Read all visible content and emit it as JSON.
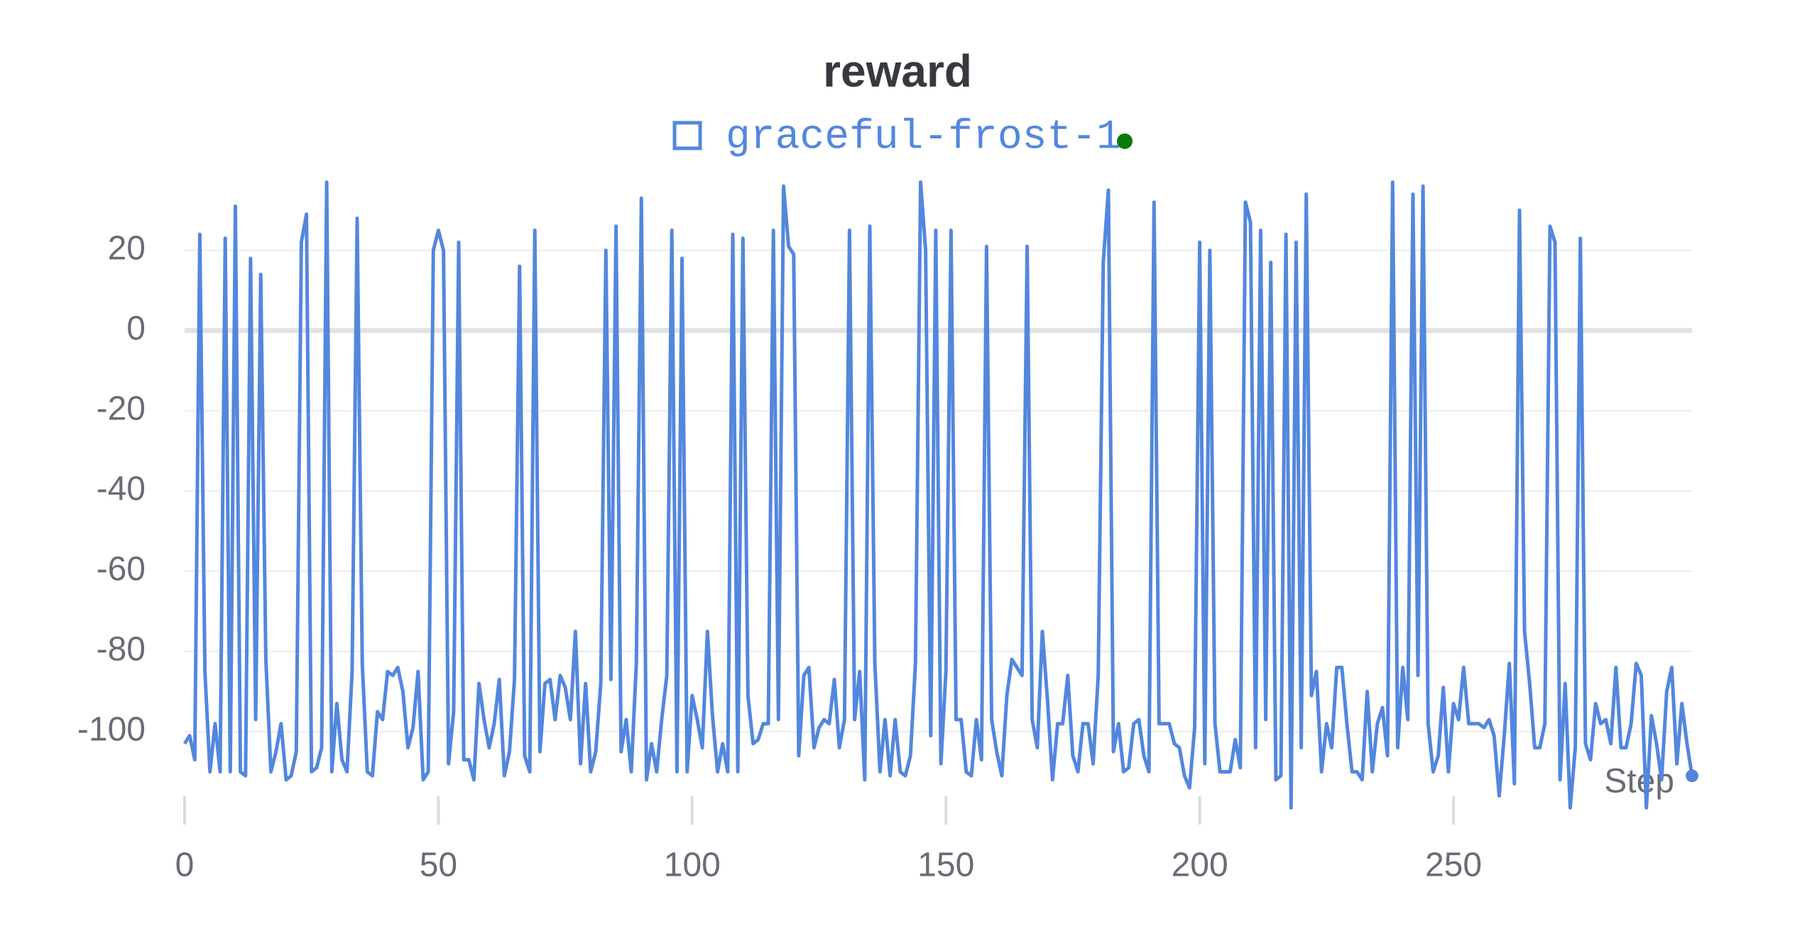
{
  "chart_data": {
    "type": "line",
    "title": "reward",
    "xlabel": "Step",
    "x": [
      0,
      1,
      2,
      3,
      4,
      5,
      6,
      7,
      8,
      9,
      10,
      11,
      12,
      13,
      14,
      15,
      16,
      17,
      18,
      19,
      20,
      21,
      22,
      23,
      24,
      25,
      26,
      27,
      28,
      29,
      30,
      31,
      32,
      33,
      34,
      35,
      36,
      37,
      38,
      39,
      40,
      41,
      42,
      43,
      44,
      45,
      46,
      47,
      48,
      49,
      50,
      51,
      52,
      53,
      54,
      55,
      56,
      57,
      58,
      59,
      60,
      61,
      62,
      63,
      64,
      65,
      66,
      67,
      68,
      69,
      70,
      71,
      72,
      73,
      74,
      75,
      76,
      77,
      78,
      79,
      80,
      81,
      82,
      83,
      84,
      85,
      86,
      87,
      88,
      89,
      90,
      91,
      92,
      93,
      94,
      95,
      96,
      97,
      98,
      99,
      100,
      101,
      102,
      103,
      104,
      105,
      106,
      107,
      108,
      109,
      110,
      111,
      112,
      113,
      114,
      115,
      116,
      117,
      118,
      119,
      120,
      121,
      122,
      123,
      124,
      125,
      126,
      127,
      128,
      129,
      130,
      131,
      132,
      133,
      134,
      135,
      136,
      137,
      138,
      139,
      140,
      141,
      142,
      143,
      144,
      145,
      146,
      147,
      148,
      149,
      150,
      151,
      152,
      153,
      154,
      155,
      156,
      157,
      158,
      159,
      160,
      161,
      162,
      163,
      164,
      165,
      166,
      167,
      168,
      169,
      170,
      171,
      172,
      173,
      174,
      175,
      176,
      177,
      178,
      179,
      180,
      181,
      182,
      183,
      184,
      185,
      186,
      187,
      188,
      189,
      190,
      191,
      192,
      193,
      194,
      195,
      196,
      197,
      198,
      199,
      200,
      201,
      202,
      203,
      204,
      205,
      206,
      207,
      208,
      209,
      210,
      211,
      212,
      213,
      214,
      215,
      216,
      217,
      218,
      219,
      220,
      221,
      222,
      223,
      224,
      225,
      226,
      227,
      228,
      229,
      230,
      231,
      232,
      233,
      234,
      235,
      236,
      237,
      238,
      239,
      240,
      241,
      242,
      243,
      244,
      245,
      246,
      247,
      248,
      249,
      250,
      251,
      252,
      253,
      254,
      255,
      256,
      257,
      258,
      259,
      260,
      261,
      262,
      263,
      264,
      265,
      266,
      267,
      268,
      269,
      270,
      271,
      272,
      273,
      274,
      275,
      276,
      277,
      278,
      279,
      280,
      281,
      282,
      283,
      284,
      285,
      286,
      287,
      288,
      289,
      290,
      291,
      292,
      293,
      294,
      295,
      296,
      297
    ],
    "series": [
      {
        "name": "graceful-frost-1",
        "color": "#5387dd",
        "values": [
          -103,
          -101,
          -107,
          24,
          -85,
          -110,
          -98,
          -110,
          23,
          -110,
          31,
          -110,
          -111,
          18,
          -97,
          14,
          -82,
          -110,
          -105,
          -98,
          -112,
          -111,
          -105,
          22,
          29,
          -110,
          -109,
          -104,
          37,
          -110,
          -93,
          -107,
          -110,
          -85,
          28,
          -83,
          -110,
          -111,
          -95,
          -97,
          -85,
          -86,
          -84,
          -90,
          -104,
          -99,
          -85,
          -112,
          -110,
          20,
          25,
          20,
          -108,
          -95,
          22,
          -107,
          -107,
          -112,
          -88,
          -97,
          -104,
          -98,
          -87,
          -111,
          -105,
          -87,
          16,
          -106,
          -110,
          25,
          -105,
          -88,
          -87,
          -97,
          -86,
          -89,
          -97,
          -75,
          -108,
          -88,
          -110,
          -105,
          -88,
          20,
          -87,
          26,
          -105,
          -97,
          -110,
          -83,
          33,
          -112,
          -103,
          -110,
          -97,
          -86,
          25,
          -110,
          18,
          -110,
          -91,
          -97,
          -104,
          -75,
          -96,
          -110,
          -103,
          -110,
          24,
          -110,
          23,
          -91,
          -103,
          -102,
          -98,
          -98,
          25,
          -97,
          36,
          21,
          19,
          -106,
          -86,
          -84,
          -104,
          -99,
          -97,
          -98,
          -87,
          -104,
          -97,
          25,
          -97,
          -85,
          -112,
          26,
          -83,
          -110,
          -97,
          -111,
          -97,
          -110,
          -111,
          -106,
          -83,
          37,
          20,
          -101,
          25,
          -108,
          -85,
          25,
          -97,
          -97,
          -110,
          -111,
          -97,
          -107,
          21,
          -97,
          -105,
          -111,
          -91,
          -82,
          -84,
          -86,
          21,
          -97,
          -104,
          -75,
          -92,
          -112,
          -98,
          -98,
          -86,
          -106,
          -110,
          -98,
          -98,
          -108,
          -86,
          17,
          35,
          -105,
          -98,
          -110,
          -109,
          -98,
          -97,
          -106,
          -110,
          32,
          -98,
          -98,
          -98,
          -103,
          -104,
          -111,
          -114,
          -99,
          22,
          -108,
          20,
          -98,
          -110,
          -110,
          -110,
          -102,
          -109,
          32,
          27,
          -104,
          25,
          -97,
          17,
          -112,
          -111,
          24,
          -119,
          22,
          -104,
          34,
          -91,
          -85,
          -110,
          -98,
          -104,
          -84,
          -84,
          -98,
          -110,
          -110,
          -112,
          -90,
          -110,
          -98,
          -94,
          -106,
          37,
          -104,
          -84,
          -97,
          34,
          -86,
          36,
          -98,
          -110,
          -106,
          -89,
          -110,
          -93,
          -97,
          -84,
          -98,
          -98,
          -98,
          -99,
          -97,
          -101,
          -116,
          -101,
          -83,
          -113,
          30,
          -75,
          -88,
          -104,
          -104,
          -98,
          26,
          22,
          -112,
          -88,
          -119,
          -104,
          23,
          -103,
          -107,
          -93,
          -98,
          -97,
          -103,
          -84,
          -104,
          -104,
          -98,
          -83,
          -86,
          -119,
          -96,
          -103,
          -112,
          -90,
          -84,
          -108,
          -93,
          -103,
          -111
        ]
      }
    ],
    "xlim": [
      0,
      297
    ],
    "xticks": [
      0,
      50,
      100,
      150,
      200,
      250
    ],
    "ylim": [
      -120,
      38
    ],
    "yticks": [
      -100,
      -80,
      -60,
      -40,
      -20,
      0,
      20
    ],
    "grid": true
  }
}
